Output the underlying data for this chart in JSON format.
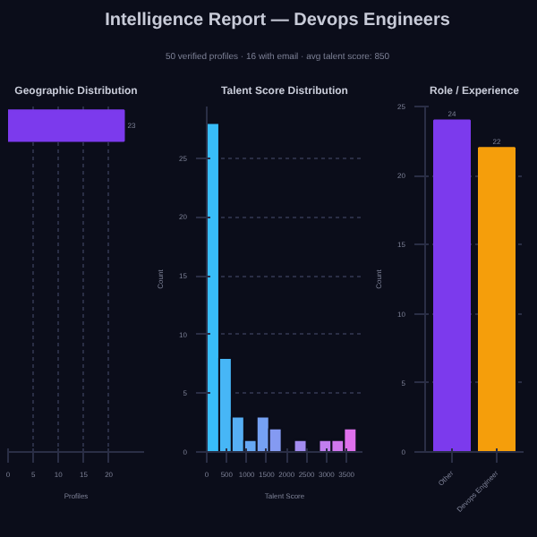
{
  "chart_data": [
    {
      "type": "other",
      "title": "Intelligence Report — Devops Engineers",
      "subtitle": "50 verified profiles · 16 with email · avg talent score: 850"
    },
    {
      "type": "bar",
      "orientation": "horizontal",
      "title": "Geographic Distribution",
      "xlabel": "Profiles",
      "categories": [
        null
      ],
      "values": [
        23
      ],
      "color": "#7c3aed",
      "data_labels": true,
      "xlim": [
        0,
        27
      ],
      "xticks": [
        0,
        5,
        10,
        15,
        20
      ],
      "grid": "x",
      "tick_labels": "x"
    },
    {
      "type": "histogram",
      "title": "Talent Score Distribution",
      "xlabel": "Talent Score",
      "ylabel": "Count",
      "bins": [
        0,
        312.5,
        625,
        937.5,
        1250,
        1562.5,
        1875,
        2187.5,
        2500,
        2812.5,
        3125,
        3437.5,
        3750
      ],
      "values": [
        28,
        8,
        3,
        1,
        3,
        2,
        0,
        1,
        0,
        1,
        1,
        2
      ],
      "colors": [
        "#38bdf8",
        "#47b6f6",
        "#56aff5",
        "#66a8f4",
        "#75a1f3",
        "#849af2",
        "#9393f1",
        "#a38cf0",
        "#b285ef",
        "#c17eee",
        "#d077ed",
        "#df70ec"
      ],
      "xlim": [
        0,
        3900
      ],
      "xticks": [
        0,
        500,
        1000,
        1500,
        2000,
        2500,
        3000,
        3500
      ],
      "ylim": [
        0,
        29.4
      ],
      "yticks": [
        0,
        5,
        10,
        15,
        20,
        25
      ],
      "grid": "y"
    },
    {
      "type": "bar",
      "title": "Role / Experience",
      "ylabel": "Count",
      "categories": [
        "Other",
        "Devops Engineer"
      ],
      "values": [
        24,
        22
      ],
      "colors": [
        "#7c3aed",
        "#f59e0b"
      ],
      "data_labels": true,
      "ylim": [
        0,
        25
      ],
      "yticks": [
        0,
        5,
        10,
        15,
        20,
        25
      ],
      "grid": "y"
    }
  ]
}
